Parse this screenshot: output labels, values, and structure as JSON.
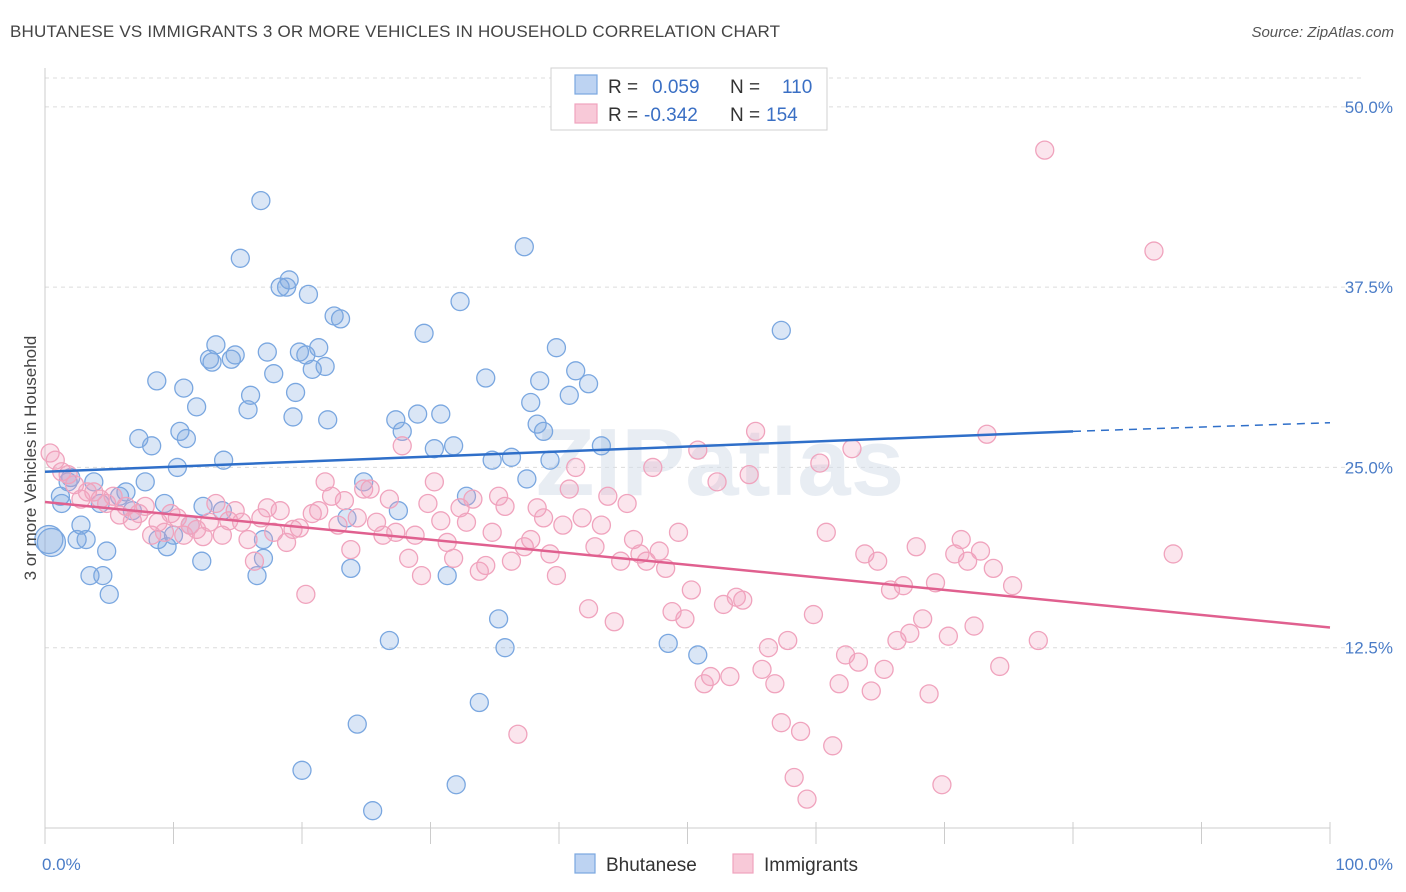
{
  "title": "BHUTANESE VS IMMIGRANTS 3 OR MORE VEHICLES IN HOUSEHOLD CORRELATION CHART",
  "source": "Source: ZipAtlas.com",
  "watermark": "ZIPatlas",
  "chart_data": {
    "type": "scatter",
    "xlabel": "",
    "ylabel": "3 or more Vehicles in Household",
    "xlim": [
      0,
      100
    ],
    "ylim": [
      0,
      52
    ],
    "x_tick_labels": [
      "0.0%",
      "100.0%"
    ],
    "y_ticks": [
      12.5,
      25.0,
      37.5,
      50.0
    ],
    "y_tick_labels": [
      "12.5%",
      "25.0%",
      "37.5%",
      "50.0%"
    ],
    "grid": true,
    "legend_position": "top-center",
    "legend": [
      {
        "r_label": "R =",
        "r_value": "0.059",
        "n_label": "N =",
        "n_value": "110"
      },
      {
        "r_label": "R =",
        "r_value": "-0.342",
        "n_label": "N =",
        "n_value": "154"
      }
    ],
    "series": [
      {
        "name": "Bhutanese",
        "color": "#7aa7e0",
        "line_color": "#2f6fc9",
        "trend": {
          "x0": 0,
          "y0": 24.7,
          "x1": 80,
          "y1": 27.5,
          "dash_to_x": 100,
          "dash_to_y": 28.1
        },
        "points": [
          [
            0.3,
            20.0
          ],
          [
            0.5,
            19.8
          ],
          [
            1.2,
            23.0
          ],
          [
            1.3,
            22.5
          ],
          [
            1.8,
            24.0
          ],
          [
            2.0,
            24.3
          ],
          [
            2.5,
            20.0
          ],
          [
            2.8,
            21.0
          ],
          [
            3.2,
            20.0
          ],
          [
            3.5,
            17.5
          ],
          [
            3.8,
            24.0
          ],
          [
            4.3,
            22.5
          ],
          [
            4.5,
            17.5
          ],
          [
            4.8,
            19.2
          ],
          [
            5.0,
            16.2
          ],
          [
            5.8,
            23.0
          ],
          [
            6.3,
            23.3
          ],
          [
            6.8,
            22.0
          ],
          [
            7.3,
            27.0
          ],
          [
            7.8,
            24.0
          ],
          [
            8.3,
            26.5
          ],
          [
            8.8,
            20.0
          ],
          [
            8.7,
            31.0
          ],
          [
            9.3,
            22.5
          ],
          [
            9.5,
            19.5
          ],
          [
            10.0,
            20.3
          ],
          [
            10.3,
            25.0
          ],
          [
            10.5,
            27.5
          ],
          [
            10.8,
            30.5
          ],
          [
            11.0,
            27.0
          ],
          [
            11.3,
            21.0
          ],
          [
            11.8,
            29.2
          ],
          [
            12.2,
            18.5
          ],
          [
            12.3,
            22.3
          ],
          [
            12.8,
            32.5
          ],
          [
            13.0,
            32.3
          ],
          [
            13.3,
            33.5
          ],
          [
            13.8,
            22.0
          ],
          [
            13.9,
            25.5
          ],
          [
            14.5,
            32.5
          ],
          [
            14.8,
            32.8
          ],
          [
            15.2,
            39.5
          ],
          [
            15.8,
            29.0
          ],
          [
            16.0,
            30.0
          ],
          [
            16.5,
            17.5
          ],
          [
            16.8,
            43.5
          ],
          [
            17.0,
            18.7
          ],
          [
            17.3,
            33.0
          ],
          [
            17.8,
            31.5
          ],
          [
            18.3,
            37.5
          ],
          [
            18.8,
            37.5
          ],
          [
            19.0,
            38.0
          ],
          [
            19.3,
            28.5
          ],
          [
            19.5,
            30.2
          ],
          [
            19.8,
            33.0
          ],
          [
            20.3,
            32.8
          ],
          [
            20.5,
            37.0
          ],
          [
            20.8,
            31.8
          ],
          [
            21.3,
            33.3
          ],
          [
            21.8,
            32.0
          ],
          [
            22.0,
            28.3
          ],
          [
            22.5,
            35.5
          ],
          [
            23.0,
            35.3
          ],
          [
            23.5,
            21.5
          ],
          [
            23.8,
            18.0
          ],
          [
            24.3,
            7.2
          ],
          [
            24.8,
            24.0
          ],
          [
            25.5,
            1.2
          ],
          [
            26.8,
            13.0
          ],
          [
            27.3,
            28.3
          ],
          [
            27.5,
            22.0
          ],
          [
            27.8,
            27.5
          ],
          [
            29.0,
            28.7
          ],
          [
            29.5,
            34.3
          ],
          [
            30.3,
            26.3
          ],
          [
            30.8,
            28.7
          ],
          [
            31.3,
            17.5
          ],
          [
            31.8,
            26.5
          ],
          [
            32.0,
            3.0
          ],
          [
            32.3,
            36.5
          ],
          [
            32.8,
            23.0
          ],
          [
            33.8,
            8.7
          ],
          [
            34.3,
            31.2
          ],
          [
            34.8,
            25.5
          ],
          [
            35.3,
            14.5
          ],
          [
            35.8,
            12.5
          ],
          [
            36.3,
            25.7
          ],
          [
            37.3,
            40.3
          ],
          [
            37.5,
            24.2
          ],
          [
            37.8,
            29.5
          ],
          [
            38.3,
            28.0
          ],
          [
            38.5,
            31.0
          ],
          [
            38.8,
            27.5
          ],
          [
            39.3,
            25.5
          ],
          [
            39.8,
            33.3
          ],
          [
            40.8,
            30.0
          ],
          [
            41.3,
            31.7
          ],
          [
            42.3,
            30.8
          ],
          [
            43.3,
            26.5
          ],
          [
            48.5,
            12.8
          ],
          [
            50.8,
            12.0
          ],
          [
            57.3,
            34.5
          ],
          [
            20.0,
            4.0
          ],
          [
            17.0,
            20.0
          ]
        ]
      },
      {
        "name": "Immigrants",
        "color": "#f0a3bd",
        "line_color": "#e0608f",
        "trend": {
          "x0": 0,
          "y0": 22.6,
          "x1": 100,
          "y1": 13.9
        },
        "points": [
          [
            0.4,
            26.0
          ],
          [
            0.8,
            25.5
          ],
          [
            1.3,
            24.7
          ],
          [
            1.8,
            24.5
          ],
          [
            2.3,
            23.8
          ],
          [
            2.8,
            22.8
          ],
          [
            3.3,
            23.3
          ],
          [
            3.8,
            23.3
          ],
          [
            4.3,
            22.8
          ],
          [
            4.8,
            22.5
          ],
          [
            5.3,
            23.0
          ],
          [
            5.8,
            21.7
          ],
          [
            6.3,
            22.3
          ],
          [
            6.8,
            21.3
          ],
          [
            7.3,
            21.8
          ],
          [
            7.8,
            22.3
          ],
          [
            8.3,
            20.3
          ],
          [
            8.8,
            21.2
          ],
          [
            9.3,
            20.5
          ],
          [
            9.8,
            21.8
          ],
          [
            10.3,
            21.5
          ],
          [
            10.8,
            20.3
          ],
          [
            11.3,
            21.0
          ],
          [
            11.8,
            20.7
          ],
          [
            12.3,
            20.2
          ],
          [
            12.8,
            21.2
          ],
          [
            13.3,
            22.5
          ],
          [
            13.8,
            20.3
          ],
          [
            14.3,
            21.3
          ],
          [
            14.8,
            22.0
          ],
          [
            15.3,
            21.2
          ],
          [
            15.8,
            20.0
          ],
          [
            16.3,
            18.5
          ],
          [
            16.8,
            21.5
          ],
          [
            17.3,
            22.2
          ],
          [
            17.8,
            20.5
          ],
          [
            18.3,
            22.0
          ],
          [
            18.8,
            19.8
          ],
          [
            19.3,
            20.7
          ],
          [
            19.8,
            20.8
          ],
          [
            20.3,
            16.2
          ],
          [
            20.8,
            21.8
          ],
          [
            21.3,
            22.0
          ],
          [
            21.8,
            24.0
          ],
          [
            22.3,
            23.0
          ],
          [
            22.8,
            21.0
          ],
          [
            23.3,
            22.7
          ],
          [
            23.8,
            19.3
          ],
          [
            24.3,
            21.5
          ],
          [
            24.8,
            23.5
          ],
          [
            25.3,
            23.5
          ],
          [
            25.8,
            21.2
          ],
          [
            26.3,
            20.3
          ],
          [
            26.8,
            22.8
          ],
          [
            27.3,
            20.5
          ],
          [
            27.8,
            26.5
          ],
          [
            28.3,
            18.7
          ],
          [
            28.8,
            20.3
          ],
          [
            29.3,
            17.5
          ],
          [
            29.8,
            22.5
          ],
          [
            30.3,
            24.0
          ],
          [
            30.8,
            21.3
          ],
          [
            31.3,
            19.8
          ],
          [
            31.8,
            18.7
          ],
          [
            32.3,
            22.2
          ],
          [
            32.8,
            21.2
          ],
          [
            33.3,
            22.8
          ],
          [
            33.8,
            17.8
          ],
          [
            34.3,
            18.2
          ],
          [
            34.8,
            20.5
          ],
          [
            35.3,
            23.0
          ],
          [
            35.8,
            22.3
          ],
          [
            36.3,
            18.5
          ],
          [
            36.8,
            6.5
          ],
          [
            37.3,
            19.5
          ],
          [
            37.8,
            20.0
          ],
          [
            38.3,
            22.2
          ],
          [
            38.8,
            21.5
          ],
          [
            39.3,
            19.0
          ],
          [
            39.8,
            17.5
          ],
          [
            40.3,
            21.0
          ],
          [
            40.8,
            23.5
          ],
          [
            41.3,
            25.0
          ],
          [
            41.8,
            21.5
          ],
          [
            42.3,
            15.2
          ],
          [
            42.8,
            19.5
          ],
          [
            43.3,
            21.0
          ],
          [
            43.8,
            23.0
          ],
          [
            44.3,
            14.3
          ],
          [
            44.8,
            18.5
          ],
          [
            45.3,
            22.5
          ],
          [
            45.8,
            20.0
          ],
          [
            46.3,
            19.0
          ],
          [
            46.8,
            18.5
          ],
          [
            47.3,
            25.0
          ],
          [
            47.8,
            19.2
          ],
          [
            48.3,
            18.0
          ],
          [
            48.8,
            15.0
          ],
          [
            49.3,
            20.5
          ],
          [
            49.8,
            14.5
          ],
          [
            50.3,
            16.5
          ],
          [
            50.8,
            26.2
          ],
          [
            51.3,
            10.0
          ],
          [
            51.8,
            10.5
          ],
          [
            52.3,
            24.0
          ],
          [
            52.8,
            15.5
          ],
          [
            53.3,
            10.5
          ],
          [
            53.8,
            16.0
          ],
          [
            54.3,
            15.8
          ],
          [
            54.8,
            24.5
          ],
          [
            55.3,
            27.5
          ],
          [
            55.8,
            11.0
          ],
          [
            56.3,
            12.5
          ],
          [
            56.8,
            10.0
          ],
          [
            57.3,
            7.3
          ],
          [
            57.8,
            13.0
          ],
          [
            58.3,
            3.5
          ],
          [
            58.8,
            6.7
          ],
          [
            59.3,
            2.0
          ],
          [
            59.8,
            14.8
          ],
          [
            60.3,
            25.3
          ],
          [
            60.8,
            20.5
          ],
          [
            61.3,
            5.7
          ],
          [
            61.8,
            10.0
          ],
          [
            62.3,
            12.0
          ],
          [
            62.8,
            26.3
          ],
          [
            63.3,
            11.5
          ],
          [
            63.8,
            19.0
          ],
          [
            64.3,
            9.5
          ],
          [
            64.8,
            18.5
          ],
          [
            65.3,
            11.0
          ],
          [
            65.8,
            16.5
          ],
          [
            66.3,
            13.0
          ],
          [
            66.8,
            16.8
          ],
          [
            67.3,
            13.5
          ],
          [
            67.8,
            19.5
          ],
          [
            68.3,
            14.5
          ],
          [
            68.8,
            9.3
          ],
          [
            69.3,
            17.0
          ],
          [
            69.8,
            3.0
          ],
          [
            70.3,
            13.3
          ],
          [
            70.8,
            19.0
          ],
          [
            71.3,
            20.0
          ],
          [
            71.8,
            18.5
          ],
          [
            72.3,
            14.0
          ],
          [
            72.8,
            19.2
          ],
          [
            73.3,
            27.3
          ],
          [
            73.8,
            18.0
          ],
          [
            74.3,
            11.2
          ],
          [
            75.3,
            16.8
          ],
          [
            77.3,
            13.0
          ],
          [
            77.8,
            47.0
          ],
          [
            86.3,
            40.0
          ],
          [
            87.8,
            19.0
          ]
        ]
      }
    ]
  },
  "bottom_legend": [
    "Bhutanese",
    "Immigrants"
  ]
}
